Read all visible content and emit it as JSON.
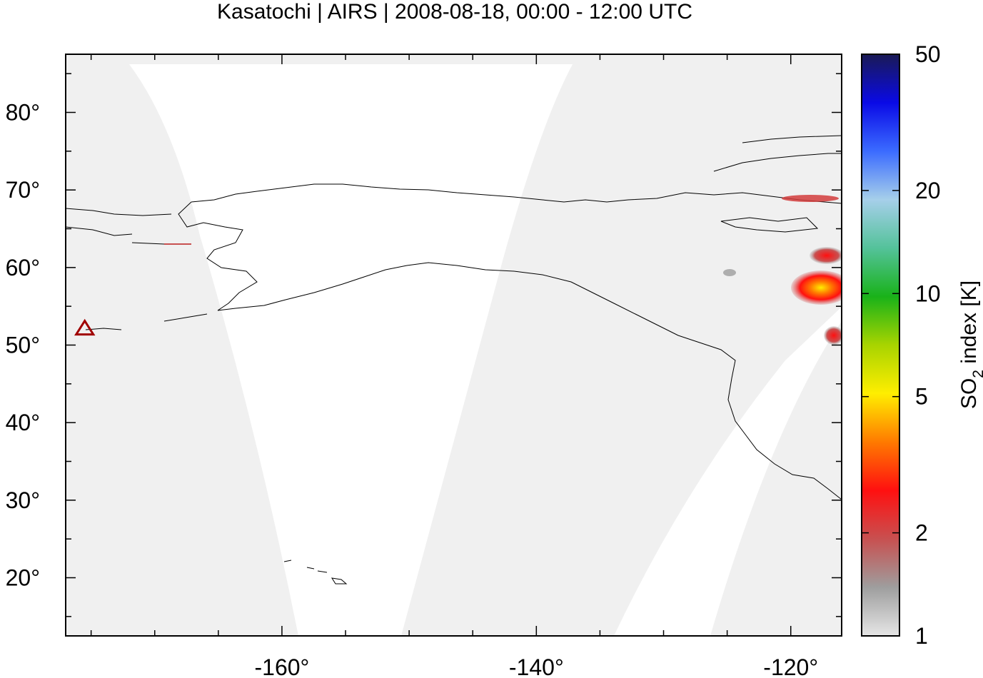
{
  "chart_data": {
    "type": "heatmap",
    "title": "Kasatochi | AIRS | 2008-08-18, 00:00 - 12:00 UTC",
    "xlim": [
      -177,
      -116
    ],
    "ylim": [
      12.5,
      87.5
    ],
    "x_ticks": [
      {
        "value": -160,
        "label": "-160°"
      },
      {
        "value": -140,
        "label": "-140°"
      },
      {
        "value": -120,
        "label": "-120°"
      }
    ],
    "y_ticks": [
      {
        "value": 20,
        "label": "20°"
      },
      {
        "value": 30,
        "label": "30°"
      },
      {
        "value": 40,
        "label": "40°"
      },
      {
        "value": 50,
        "label": "50°"
      },
      {
        "value": 60,
        "label": "60°"
      },
      {
        "value": 70,
        "label": "70°"
      },
      {
        "value": 80,
        "label": "80°"
      }
    ],
    "volcano": {
      "name": "Kasatochi",
      "lon": -175.5,
      "lat": 52.2
    },
    "so2_features": [
      {
        "lon": -114.8,
        "lat": 57.8,
        "value": 7
      },
      {
        "lon": -115.8,
        "lat": 57.4,
        "value": 5
      },
      {
        "lon": -117.0,
        "lat": 57.0,
        "value": 3.5
      },
      {
        "lon": -115.5,
        "lat": 61.5,
        "value": 3
      },
      {
        "lon": -114.8,
        "lat": 51.2,
        "value": 2.8
      },
      {
        "lon": -119.5,
        "lat": 69.5,
        "value": 2.5
      },
      {
        "lon": -124.5,
        "lat": 59.2,
        "value": 1.6
      }
    ],
    "colorbar": {
      "label_main": "SO",
      "label_sub": "2",
      "label_rest": " index [K]",
      "scale": "log",
      "range": [
        1,
        50
      ],
      "ticks": [
        {
          "value": 1,
          "label": "1"
        },
        {
          "value": 2,
          "label": "2"
        },
        {
          "value": 5,
          "label": "5"
        },
        {
          "value": 10,
          "label": "10"
        },
        {
          "value": 20,
          "label": "20"
        },
        {
          "value": 50,
          "label": "50"
        }
      ],
      "colors": [
        "#e6e6e6",
        "#9e9e9e",
        "#c85050",
        "#ff1010",
        "#ff7a00",
        "#ffee00",
        "#a8d400",
        "#19b219",
        "#54c29a",
        "#a6cfea",
        "#3b6bff",
        "#0a0ae6",
        "#1a1a55"
      ]
    },
    "coverage_color": "#f0f0f0"
  }
}
